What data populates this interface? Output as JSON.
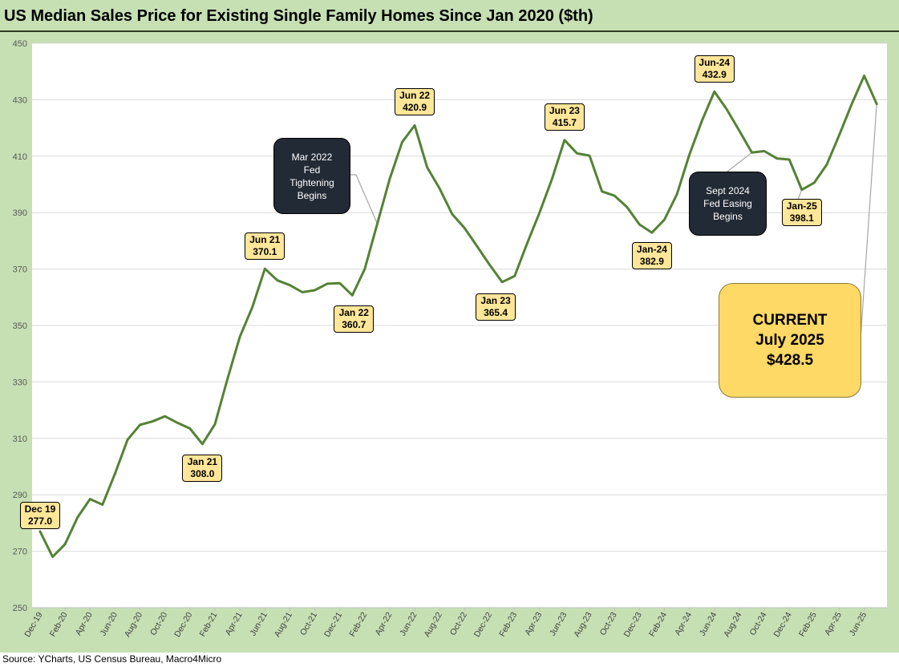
{
  "title": "US Median Sales Price for Existing Single Family Homes Since Jan 2020 ($th)",
  "source": "Source: YCharts, US Census Bureau, Macro4Micro",
  "colors": {
    "line": "#548235",
    "panel": "#c6e0b4",
    "label_fill": "#ffe699",
    "callout_dark": "#222a35",
    "current_fill": "#ffd966"
  },
  "chart_data": {
    "type": "line",
    "title": "US Median Sales Price for Existing Single Family Homes Since Jan 2020 ($th)",
    "xlabel": "",
    "ylabel": "",
    "ylim": [
      250,
      450
    ],
    "yticks": [
      250,
      270,
      290,
      310,
      330,
      350,
      370,
      390,
      410,
      430,
      450
    ],
    "grid": "horizontal",
    "legend": "none",
    "x_tick_labels": [
      "Dec-19",
      "Feb-20",
      "Apr-20",
      "Jun-20",
      "Aug-20",
      "Oct-20",
      "Dec-20",
      "Feb-21",
      "Apr-21",
      "Jun-21",
      "Aug-21",
      "Oct-21",
      "Dec-21",
      "Feb-22",
      "Apr-22",
      "Jun-22",
      "Aug-22",
      "Oct-22",
      "Dec-22",
      "Feb-23",
      "Apr-23",
      "Jun-23",
      "Aug-23",
      "Oct-23",
      "Dec-23",
      "Feb-24",
      "Apr-24",
      "Jun-24",
      "Aug-24",
      "Oct-24",
      "Dec-24",
      "Feb-25",
      "Apr-25",
      "Jun-25"
    ],
    "x": [
      "Dec-19",
      "Jan-20",
      "Feb-20",
      "Mar-20",
      "Apr-20",
      "May-20",
      "Jun-20",
      "Jul-20",
      "Aug-20",
      "Sep-20",
      "Oct-20",
      "Nov-20",
      "Dec-20",
      "Jan-21",
      "Feb-21",
      "Mar-21",
      "Apr-21",
      "May-21",
      "Jun-21",
      "Jul-21",
      "Aug-21",
      "Sep-21",
      "Oct-21",
      "Nov-21",
      "Dec-21",
      "Jan-22",
      "Feb-22",
      "Mar-22",
      "Apr-22",
      "May-22",
      "Jun-22",
      "Jul-22",
      "Aug-22",
      "Sep-22",
      "Oct-22",
      "Nov-22",
      "Dec-22",
      "Jan-23",
      "Feb-23",
      "Mar-23",
      "Apr-23",
      "May-23",
      "Jun-23",
      "Jul-23",
      "Aug-23",
      "Sep-23",
      "Oct-23",
      "Nov-23",
      "Dec-23",
      "Jan-24",
      "Feb-24",
      "Mar-24",
      "Apr-24",
      "May-24",
      "Jun-24",
      "Jul-24",
      "Aug-24",
      "Sep-24",
      "Oct-24",
      "Nov-24",
      "Dec-24",
      "Jan-25",
      "Feb-25",
      "Mar-25",
      "Apr-25",
      "May-25",
      "Jun-25",
      "Jul-25"
    ],
    "series": [
      {
        "values": [
          277.0,
          268.0,
          272.5,
          282.0,
          288.5,
          286.5,
          297.5,
          309.5,
          314.8,
          316.0,
          317.8,
          315.5,
          313.5,
          308.0,
          315.0,
          331.0,
          346.0,
          356.5,
          370.1,
          366.0,
          364.3,
          361.8,
          362.5,
          364.8,
          365.0,
          360.7,
          370.0,
          386.0,
          402.0,
          415.0,
          420.9,
          406.0,
          398.5,
          389.5,
          384.5,
          378.0,
          371.5,
          365.4,
          367.5,
          379.0,
          390.0,
          402.0,
          415.7,
          411.0,
          410.2,
          397.5,
          396.0,
          392.0,
          385.8,
          382.9,
          387.5,
          396.5,
          410.5,
          422.5,
          432.9,
          426.5,
          419.0,
          411.3,
          411.8,
          409.2,
          408.8,
          398.1,
          400.6,
          407.0,
          417.5,
          428.5,
          438.5,
          428.5
        ]
      }
    ],
    "point_labels": [
      {
        "x": "Dec-19",
        "lines": [
          "Dec 19",
          "277.0"
        ]
      },
      {
        "x": "Jan-21",
        "lines": [
          "Jan 21",
          "308.0"
        ]
      },
      {
        "x": "Jun-21",
        "lines": [
          "Jun 21",
          "370.1"
        ]
      },
      {
        "x": "Jan-22",
        "lines": [
          "Jan 22",
          "360.7"
        ]
      },
      {
        "x": "Jun-22",
        "lines": [
          "Jun 22",
          "420.9"
        ]
      },
      {
        "x": "Jan-23",
        "lines": [
          "Jan 23",
          "365.4"
        ]
      },
      {
        "x": "Jun-23",
        "lines": [
          "Jun 23",
          "415.7"
        ]
      },
      {
        "x": "Jan-24",
        "lines": [
          "Jan-24",
          "382.9"
        ]
      },
      {
        "x": "Jun-24",
        "lines": [
          "Jun-24",
          "432.9"
        ]
      },
      {
        "x": "Jan-25",
        "lines": [
          "Jan-25",
          "398.1"
        ]
      }
    ],
    "annotations": [
      {
        "x": "Mar-22",
        "lines": [
          "Mar 2022",
          "Fed",
          "Tightening",
          "Begins"
        ]
      },
      {
        "x": "Sep-24",
        "lines": [
          "Sept 2024",
          "Fed Easing",
          "Begins"
        ]
      }
    ],
    "current_callout": {
      "x": "Jul-25",
      "lines": [
        "CURRENT",
        "July 2025",
        "$428.5"
      ]
    }
  }
}
